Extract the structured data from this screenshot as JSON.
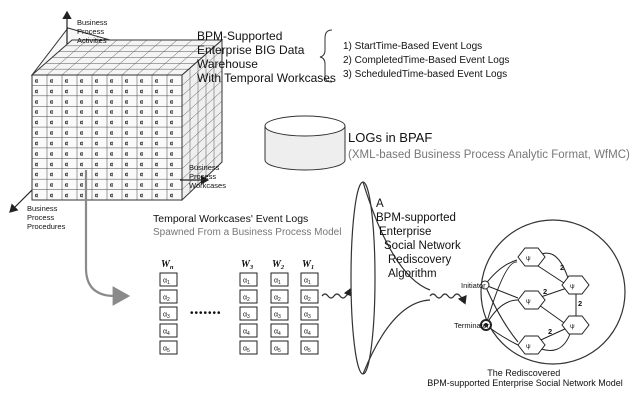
{
  "cube": {
    "axis_activities": [
      "Business",
      "Process",
      "Activities"
    ],
    "axis_workcases": [
      "Business",
      "Process",
      "Workcases"
    ],
    "axis_procedures": [
      "Business",
      "Process",
      "Procedures"
    ],
    "cell_symbol": "α"
  },
  "warehouse": {
    "title_lines": [
      "BPM-Supported",
      "Enterprise BIG Data",
      "Warehouse",
      "With Temporal Workcases"
    ],
    "log_types": [
      "1) StartTime-Based Event Logs",
      "2) CompletedTime-Based Event Logs",
      "3) ScheduledTime-based Event Logs"
    ]
  },
  "logs": {
    "title": "LOGs in BPAF",
    "subtitle": "(XML-based Business Process Analytic Format, WfMC)"
  },
  "event_logs": {
    "title": "Temporal Workcases' Event Logs",
    "subtitle": "Spawned From a Business Process Model",
    "columns": [
      {
        "label": "W",
        "sub": "n"
      },
      {
        "label": "W",
        "sub": "3"
      },
      {
        "label": "W",
        "sub": "2"
      },
      {
        "label": "W",
        "sub": "1"
      }
    ],
    "rows": [
      {
        "sym": "α",
        "sub": "1"
      },
      {
        "sym": "α",
        "sub": "2"
      },
      {
        "sym": "α",
        "sub": "3"
      },
      {
        "sym": "α",
        "sub": "4"
      },
      {
        "sym": "α",
        "sub": "5"
      }
    ],
    "ellipsis": "•••••••"
  },
  "algorithm": {
    "lines": [
      "A",
      "BPM-supported",
      "Enterprise",
      "Social Network",
      "Rediscovery",
      "Algorithm"
    ]
  },
  "network": {
    "nodes": {
      "initiator": "Initiator",
      "terminator": "Terminator",
      "n_top": "ψ",
      "n_mid": "ψ",
      "n_bottom": "ψ",
      "n_right_top": "ψ",
      "n_right_bottom": "ψ"
    },
    "edge_labels": [
      "2",
      "2",
      "2",
      "2"
    ],
    "caption_lines": [
      "The Rediscovered",
      "BPM-supported Enterprise Social Network Model"
    ]
  },
  "colors": {
    "ink": "#111111",
    "gray_text": "#777777",
    "arrow_gray": "#8a8a8a"
  }
}
